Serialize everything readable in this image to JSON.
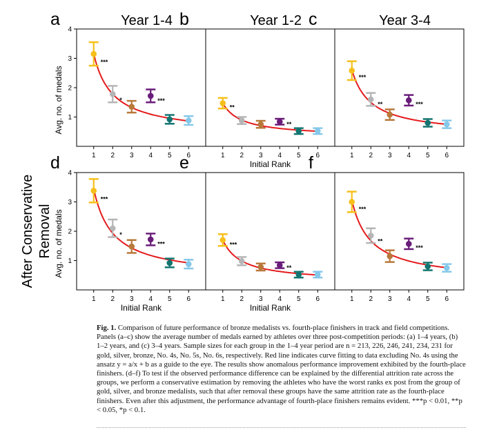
{
  "figure": {
    "side_label_lines": [
      "After Conservative",
      "Removal"
    ],
    "ylabel": "Avg. no. of medals",
    "xlabel": "Initial Rank"
  },
  "chart_data": [
    {
      "panel": "a",
      "title": "Year 1-4",
      "type": "scatter",
      "x": [
        1,
        2,
        3,
        4,
        5,
        6
      ],
      "y": [
        3.15,
        1.78,
        1.35,
        1.72,
        0.92,
        0.88
      ],
      "err": [
        0.4,
        0.28,
        0.2,
        0.22,
        0.15,
        0.15
      ],
      "sig": [
        "***",
        "*",
        "",
        "***",
        "",
        ""
      ],
      "ylim": [
        0,
        4
      ],
      "yticks": [
        1,
        2,
        3,
        4
      ],
      "show_yaxis": true,
      "show_xlabel": false
    },
    {
      "panel": "b",
      "title": "Year 1-2",
      "type": "scatter",
      "x": [
        1,
        2,
        3,
        4,
        5,
        6
      ],
      "y": [
        1.47,
        0.88,
        0.75,
        0.84,
        0.52,
        0.52
      ],
      "err": [
        0.18,
        0.12,
        0.12,
        0.1,
        0.1,
        0.1
      ],
      "sig": [
        "**",
        "",
        "",
        "**",
        "",
        ""
      ],
      "ylim": [
        0,
        4
      ],
      "show_yaxis": false,
      "show_xlabel": true
    },
    {
      "panel": "c",
      "title": "Year 3-4",
      "type": "scatter",
      "x": [
        1,
        2,
        3,
        4,
        5,
        6
      ],
      "y": [
        2.58,
        1.6,
        1.08,
        1.57,
        0.8,
        0.75
      ],
      "err": [
        0.32,
        0.22,
        0.18,
        0.18,
        0.13,
        0.13
      ],
      "sig": [
        "***",
        "**",
        "",
        "***",
        "",
        ""
      ],
      "ylim": [
        0,
        4
      ],
      "show_yaxis": false,
      "show_xlabel": false
    },
    {
      "panel": "d",
      "title": "",
      "type": "scatter",
      "x": [
        1,
        2,
        3,
        4,
        5,
        6
      ],
      "y": [
        3.38,
        2.1,
        1.48,
        1.72,
        0.92,
        0.88
      ],
      "err": [
        0.4,
        0.3,
        0.22,
        0.2,
        0.15,
        0.15
      ],
      "sig": [
        "***",
        "*",
        "",
        "***",
        "",
        ""
      ],
      "ylim": [
        0,
        4
      ],
      "yticks": [
        1,
        2,
        3,
        4
      ],
      "show_yaxis": true,
      "show_xlabel": true
    },
    {
      "panel": "e",
      "title": "",
      "type": "scatter",
      "x": [
        1,
        2,
        3,
        4,
        5,
        6
      ],
      "y": [
        1.7,
        0.98,
        0.78,
        0.84,
        0.52,
        0.52
      ],
      "err": [
        0.2,
        0.14,
        0.12,
        0.1,
        0.1,
        0.1
      ],
      "sig": [
        "***",
        "",
        "",
        "**",
        "",
        ""
      ],
      "ylim": [
        0,
        4
      ],
      "show_yaxis": false,
      "show_xlabel": true
    },
    {
      "panel": "f",
      "title": "",
      "type": "scatter",
      "x": [
        1,
        2,
        3,
        4,
        5,
        6
      ],
      "y": [
        3.0,
        1.85,
        1.15,
        1.57,
        0.8,
        0.75
      ],
      "err": [
        0.35,
        0.25,
        0.2,
        0.18,
        0.13,
        0.13
      ],
      "sig": [
        "***",
        "**",
        "",
        "***",
        "",
        ""
      ],
      "ylim": [
        0,
        4
      ],
      "show_yaxis": false,
      "show_xlabel": false
    }
  ],
  "colors": [
    "#f6bf1a",
    "#b5b5b5",
    "#b8783a",
    "#6a1c7a",
    "#137470",
    "#85c8ea"
  ],
  "fit_color": "#e41a1c",
  "caption": {
    "fig_label": "Fig. 1.",
    "text": "Comparison of future performance of bronze medalists vs. fourth-place finishers in track and field competitions. Panels (a–c) show the average number of medals earned by athletes over three post-competition periods: (a) 1–4 years, (b) 1–2 years, and (c) 3–4 years. Sample sizes for each group in the 1–4 year period are n = 213, 226, 246, 241, 234, 231 for gold, silver, bronze, No. 4s, No. 5s, No. 6s, respectively. Red line indicates curve fitting to data excluding No. 4s using the ansatz y = a/x + b as a guide to the eye. The results show anomalous performance improvement exhibited by the fourth-place finishers. (d–f) To test if the observed performance difference can be explained by the differential attrition rate across the groups, we perform a conservative estimation by removing the athletes who have the worst ranks ex post from the group of gold, silver, and bronze medalists, such that after removal these groups have the same attrition rate as the fourth-place finishers. Even after this adjustment, the performance advantage of fourth-place finishers remains evident. ***p < 0.01, **p < 0.05, *p < 0.1."
  }
}
